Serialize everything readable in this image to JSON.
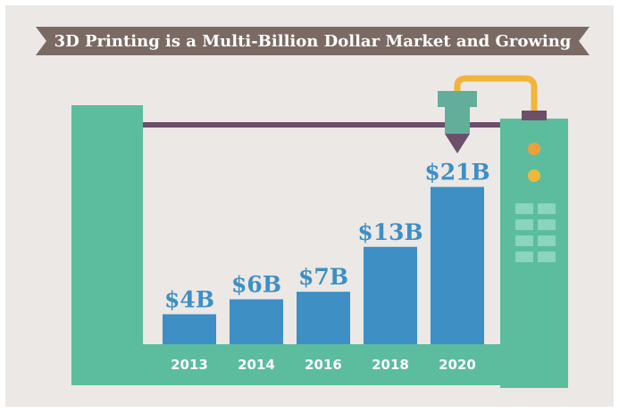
{
  "chart_data": {
    "type": "bar",
    "title": "3D Printing is a Multi-Billion Dollar Market and Growing",
    "categories": [
      "2013",
      "2014",
      "2016",
      "2018",
      "2020"
    ],
    "values": [
      4,
      6,
      7,
      13,
      21
    ],
    "value_labels": [
      "$4B",
      "$6B",
      "$7B",
      "$13B",
      "$21B"
    ],
    "color": "#3d8fc4"
  }
}
